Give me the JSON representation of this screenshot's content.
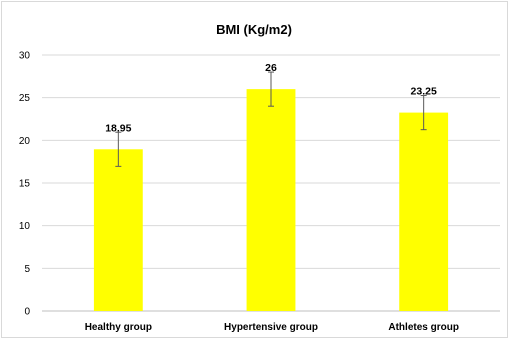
{
  "chart_data": {
    "type": "bar",
    "title": "BMI (Kg/m2)",
    "xlabel": "",
    "ylabel": "",
    "categories": [
      "Healthy group",
      "Hypertensive group",
      "Athletes group"
    ],
    "values": [
      18.95,
      26,
      23.25
    ],
    "value_labels": [
      "18.95",
      "26",
      "23.25"
    ],
    "error": [
      2,
      2,
      2
    ],
    "ylim": [
      0,
      30
    ],
    "yticks": [
      0,
      5,
      10,
      15,
      20,
      25,
      30
    ],
    "ytick_labels": [
      "0",
      "5",
      "10",
      "15",
      "20",
      "25",
      "30"
    ],
    "grid": true,
    "legend": "none",
    "colors": {
      "bar": "#ffff00",
      "grid": "#d9d9d9",
      "axis": "#bfbfbf",
      "error_bar": "#595959"
    }
  }
}
